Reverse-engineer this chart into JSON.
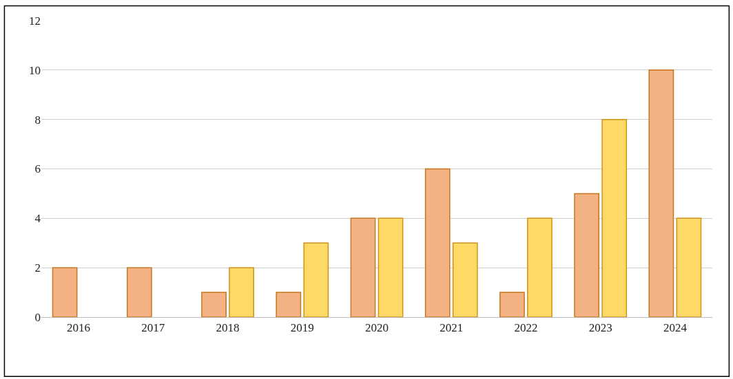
{
  "chart_data": {
    "type": "bar",
    "categories": [
      "2016",
      "2017",
      "2018",
      "2019",
      "2020",
      "2021",
      "2022",
      "2023",
      "2024"
    ],
    "series": [
      {
        "color": "#f4b183",
        "values": [
          2,
          2,
          1,
          1,
          4,
          6,
          1,
          5,
          10
        ]
      },
      {
        "color": "#ffd966",
        "values": [
          null,
          null,
          2,
          3,
          4,
          3,
          4,
          8,
          4
        ]
      }
    ],
    "ylim": [
      0,
      12
    ],
    "yticks": [
      0,
      2,
      4,
      6,
      8,
      10,
      12
    ],
    "grid": "y",
    "legend": false
  }
}
